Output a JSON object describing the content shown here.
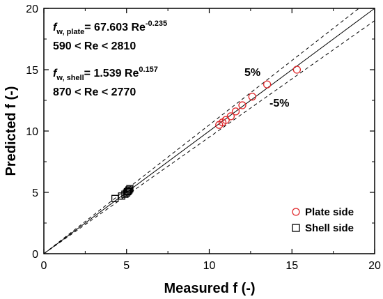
{
  "chart_data": {
    "type": "scatter",
    "xlabel": "Measured f (-)",
    "ylabel": "Predicted f (-)",
    "xlim": [
      0,
      20
    ],
    "ylim": [
      0,
      20
    ],
    "xticks": [
      0,
      5,
      10,
      15,
      20
    ],
    "yticks": [
      0,
      5,
      10,
      15,
      20
    ],
    "grid": false,
    "legend_position": "bottom-right",
    "series": [
      {
        "name": "Plate side",
        "marker": "circle-open",
        "color": "#e0282b",
        "points": [
          [
            10.6,
            10.5
          ],
          [
            10.8,
            10.7
          ],
          [
            11.0,
            10.9
          ],
          [
            11.3,
            11.2
          ],
          [
            11.6,
            11.6
          ],
          [
            12.0,
            12.1
          ],
          [
            12.6,
            12.8
          ],
          [
            13.5,
            13.8
          ],
          [
            15.3,
            15.0
          ]
        ]
      },
      {
        "name": "Shell side",
        "marker": "square-open",
        "color": "#000000",
        "points": [
          [
            4.3,
            4.5
          ],
          [
            4.7,
            4.7
          ],
          [
            4.9,
            4.85
          ],
          [
            5.0,
            4.95
          ],
          [
            5.05,
            5.05
          ],
          [
            5.1,
            5.1
          ],
          [
            5.15,
            5.2
          ],
          [
            5.2,
            5.3
          ]
        ]
      }
    ],
    "reference_lines": [
      {
        "kind": "parity",
        "slope": 1.0,
        "style": "solid"
      },
      {
        "kind": "deviation",
        "slope": 1.05,
        "style": "dashed",
        "label": "5%"
      },
      {
        "kind": "deviation",
        "slope": 0.95,
        "style": "dashed",
        "label": "-5%"
      }
    ],
    "annotations": {
      "plate_f": "f",
      "plate_sub": "w, plate",
      "plate_eq": "= 67.603 Re",
      "plate_exp": "-0.235",
      "plate_range": "590 < Re < 2810",
      "shell_f": "f",
      "shell_sub": "w, shell",
      "shell_eq": "= 1.539 Re",
      "shell_exp": "0.157",
      "shell_range": "870 < Re < 2770",
      "plus_label": "5%",
      "minus_label": "-5%"
    }
  }
}
